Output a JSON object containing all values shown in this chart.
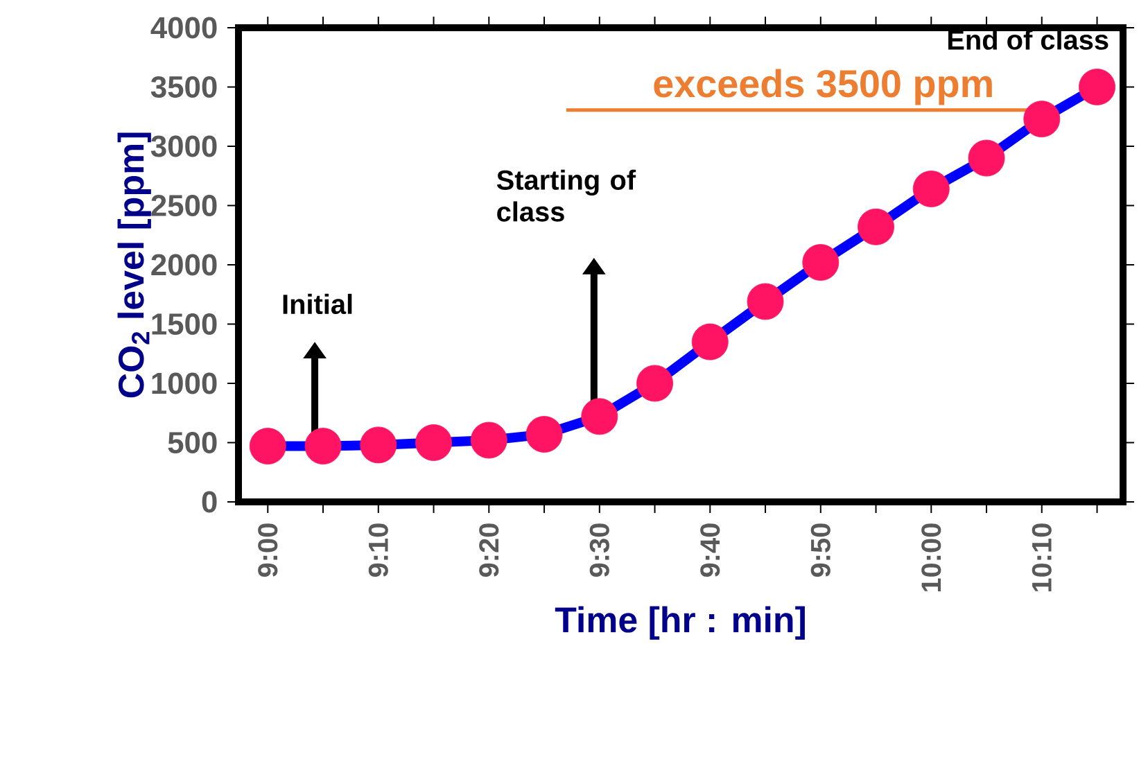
{
  "chart_data": {
    "type": "line",
    "xlabel": "Time [hr : min]",
    "ylabel": "CO$_{2}$ level [ppm]",
    "categories": [
      "9:00",
      null,
      "9:10",
      null,
      "9:20",
      null,
      "9:30",
      null,
      "9:40",
      null,
      "9:50",
      null,
      "10:00",
      null,
      "10:10",
      null
    ],
    "series": [
      {
        "color": "#0000ff",
        "values": [
          470,
          470,
          480,
          500,
          520,
          570,
          720,
          1000,
          1350,
          1690,
          2020,
          2320,
          2640,
          2900,
          3230,
          3500
        ],
        "colors": [
          "#ff1464",
          "#ff1464",
          "#ff1464",
          "#ff1464",
          "#ff1464",
          "#ff1464",
          "#ff1464",
          "#ff1464",
          "#ff1464",
          "#ff1464",
          "#ff1464",
          "#ff1464",
          "#ff1464",
          "#ff1464",
          "#ff1464",
          "#ff1464"
        ]
      }
    ],
    "ylim": [
      0,
      4000
    ],
    "yticks": [
      0,
      500,
      1000,
      1500,
      2000,
      2500,
      3000,
      3500,
      4000
    ],
    "marker": "circle",
    "line_style": "solid",
    "grid": false,
    "annotations": [
      "Initial",
      "Starting of class",
      "End of class",
      "exceeds 3500 ppm"
    ]
  }
}
